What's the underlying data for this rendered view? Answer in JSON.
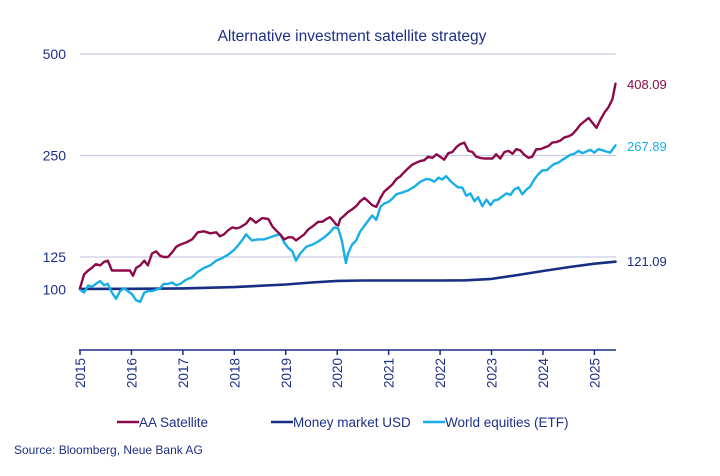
{
  "chart_data": {
    "type": "line",
    "title": "Alternative investment satellite strategy",
    "xlabel": "",
    "ylabel": "",
    "y_scale": "log",
    "ylim": [
      70,
      500
    ],
    "xlim": [
      2015,
      2025.42
    ],
    "grid": "horizontal",
    "y_ticks": [
      500,
      250,
      125,
      100
    ],
    "y_tick_labels": [
      "500",
      "250",
      "125",
      "100"
    ],
    "x_ticks": [
      2015,
      2016,
      2017,
      2018,
      2019,
      2020,
      2021,
      2022,
      2023,
      2024,
      2025
    ],
    "x_tick_labels": [
      "2015",
      "2016",
      "2017",
      "2018",
      "2019",
      "2020",
      "2021",
      "2022",
      "2023",
      "2024",
      "2025"
    ],
    "legend_position": "bottom",
    "source": "Source: Bloomberg, Neue Bank AG",
    "series": [
      {
        "name": "AA Satellite",
        "color": "#8b0a4a",
        "end_label": "408.09",
        "x": [
          2015.0,
          2015.08,
          2015.16,
          2015.23,
          2015.31,
          2015.39,
          2015.47,
          2015.54,
          2015.62,
          2015.74,
          2015.86,
          2015.97,
          2016.03,
          2016.09,
          2016.17,
          2016.25,
          2016.32,
          2016.4,
          2016.48,
          2016.56,
          2016.63,
          2016.71,
          2016.79,
          2016.87,
          2016.95,
          2017.06,
          2017.18,
          2017.29,
          2017.41,
          2017.53,
          2017.65,
          2017.72,
          2017.8,
          2017.88,
          2017.96,
          2018.04,
          2018.11,
          2018.23,
          2018.31,
          2018.42,
          2018.54,
          2018.66,
          2018.74,
          2018.81,
          2018.89,
          2018.97,
          2019.05,
          2019.13,
          2019.2,
          2019.28,
          2019.36,
          2019.44,
          2019.52,
          2019.63,
          2019.71,
          2019.79,
          2019.86,
          2019.94,
          2019.98,
          2020.02,
          2020.06,
          2020.14,
          2020.21,
          2020.29,
          2020.37,
          2020.45,
          2020.53,
          2020.6,
          2020.68,
          2020.76,
          2020.84,
          2020.91,
          2020.99,
          2021.07,
          2021.15,
          2021.23,
          2021.3,
          2021.38,
          2021.46,
          2021.54,
          2021.62,
          2021.69,
          2021.77,
          2021.85,
          2021.93,
          2022.0,
          2022.08,
          2022.16,
          2022.24,
          2022.32,
          2022.39,
          2022.47,
          2022.55,
          2022.63,
          2022.7,
          2022.78,
          2022.86,
          2022.94,
          2023.02,
          2023.09,
          2023.17,
          2023.25,
          2023.33,
          2023.41,
          2023.48,
          2023.56,
          2023.64,
          2023.72,
          2023.79,
          2023.87,
          2023.95,
          2024.03,
          2024.11,
          2024.18,
          2024.26,
          2024.34,
          2024.42,
          2024.5,
          2024.57,
          2024.65,
          2024.73,
          2024.81,
          2024.89,
          2024.96,
          2025.04,
          2025.12,
          2025.2,
          2025.27,
          2025.35,
          2025.41
        ],
        "values": [
          101,
          111,
          114,
          116,
          119,
          118,
          121,
          122,
          114,
          114,
          114,
          114,
          110,
          116,
          118,
          122,
          118,
          128,
          130,
          126,
          125,
          125,
          129,
          134,
          136,
          138,
          141,
          148,
          149,
          147,
          148,
          144,
          146,
          150,
          153,
          152,
          153,
          157,
          163,
          158,
          163,
          162,
          154,
          150,
          146,
          141,
          143,
          143,
          140,
          143,
          146,
          151,
          154,
          159,
          159,
          162,
          164,
          159,
          156,
          155,
          162,
          166,
          170,
          173,
          177,
          183,
          187,
          183,
          178,
          176,
          187,
          195,
          200,
          205,
          213,
          217,
          223,
          229,
          235,
          238,
          241,
          242,
          248,
          246,
          252,
          248,
          243,
          254,
          256,
          265,
          270,
          273,
          258,
          256,
          248,
          246,
          245,
          245,
          245,
          252,
          245,
          256,
          258,
          253,
          261,
          259,
          251,
          246,
          248,
          261,
          261,
          264,
          267,
          273,
          274,
          277,
          283,
          285,
          289,
          298,
          309,
          316,
          323,
          313,
          302,
          320,
          336,
          347,
          367,
          408.09
        ],
        "dummy_unused": null
      },
      {
        "name": "Money market USD",
        "color": "#172f83",
        "end_label": "121.09",
        "x": [
          2015.0,
          2016.0,
          2017.0,
          2018.0,
          2019.0,
          2019.5,
          2020.0,
          2020.5,
          2021.0,
          2022.0,
          2022.5,
          2023.0,
          2023.5,
          2024.0,
          2024.5,
          2025.0,
          2025.41
        ],
        "values": [
          100.5,
          100.6,
          100.9,
          101.8,
          103.6,
          105,
          106.2,
          106.5,
          106.5,
          106.5,
          106.6,
          107.6,
          110.5,
          113.6,
          116.7,
          119.4,
          121.09
        ]
      },
      {
        "name": "World equities (ETF)",
        "color": "#19aee8",
        "end_label": "267.89",
        "x": [
          2015.0,
          2015.08,
          2015.16,
          2015.23,
          2015.31,
          2015.39,
          2015.47,
          2015.54,
          2015.62,
          2015.7,
          2015.78,
          2015.86,
          2015.93,
          2016.01,
          2016.09,
          2016.17,
          2016.25,
          2016.32,
          2016.4,
          2016.48,
          2016.56,
          2016.63,
          2016.71,
          2016.79,
          2016.87,
          2016.95,
          2017.06,
          2017.18,
          2017.29,
          2017.41,
          2017.53,
          2017.65,
          2017.76,
          2017.88,
          2017.99,
          2018.07,
          2018.15,
          2018.23,
          2018.34,
          2018.46,
          2018.58,
          2018.7,
          2018.81,
          2018.89,
          2018.97,
          2019.05,
          2019.13,
          2019.2,
          2019.28,
          2019.4,
          2019.52,
          2019.63,
          2019.75,
          2019.86,
          2019.94,
          2020.02,
          2020.09,
          2020.17,
          2020.21,
          2020.29,
          2020.37,
          2020.45,
          2020.56,
          2020.68,
          2020.76,
          2020.84,
          2020.91,
          2020.99,
          2021.07,
          2021.15,
          2021.26,
          2021.38,
          2021.5,
          2021.62,
          2021.73,
          2021.81,
          2021.89,
          2021.97,
          2022.04,
          2022.12,
          2022.2,
          2022.28,
          2022.35,
          2022.43,
          2022.51,
          2022.59,
          2022.67,
          2022.74,
          2022.82,
          2022.9,
          2022.98,
          2023.05,
          2023.13,
          2023.21,
          2023.29,
          2023.37,
          2023.44,
          2023.52,
          2023.6,
          2023.68,
          2023.75,
          2023.83,
          2023.91,
          2023.99,
          2024.07,
          2024.14,
          2024.22,
          2024.3,
          2024.38,
          2024.46,
          2024.53,
          2024.61,
          2024.69,
          2024.77,
          2024.84,
          2024.92,
          2025.0,
          2025.08,
          2025.16,
          2025.23,
          2025.31,
          2025.41
        ],
        "values": [
          100,
          98,
          103,
          102,
          104,
          106,
          103,
          104,
          98,
          94,
          99,
          101,
          99,
          97,
          93,
          92,
          98,
          99,
          99,
          100,
          101,
          104,
          104,
          105,
          103,
          104,
          107,
          109,
          113,
          116,
          118,
          122,
          124,
          127,
          131,
          135,
          140,
          146,
          140,
          141,
          141,
          143,
          145,
          146,
          138,
          133,
          130,
          122,
          128,
          134,
          136,
          139,
          143,
          148,
          153,
          152,
          140,
          120,
          128,
          136,
          140,
          149,
          157,
          166,
          161,
          176,
          180,
          182,
          186,
          192,
          194,
          197,
          202,
          209,
          213,
          212,
          209,
          215,
          212,
          217,
          210,
          205,
          201,
          201,
          190,
          193,
          183,
          188,
          177,
          185,
          178,
          184,
          185,
          189,
          193,
          191,
          198,
          201,
          192,
          198,
          202,
          212,
          220,
          226,
          226,
          231,
          236,
          238,
          243,
          247,
          251,
          253,
          258,
          254,
          257,
          260,
          255,
          261,
          259,
          257,
          255,
          267.89
        ]
      }
    ]
  },
  "legend": {
    "items": [
      {
        "label": "AA Satellite",
        "color": "#8b0a4a"
      },
      {
        "label": "Money market USD",
        "color": "#172f83"
      },
      {
        "label": "World equities (ETF)",
        "color": "#19aee8"
      }
    ]
  },
  "colors": {
    "text": "#1e2f86",
    "grid": "#c9cde3",
    "axis": "#1c2a8a"
  }
}
